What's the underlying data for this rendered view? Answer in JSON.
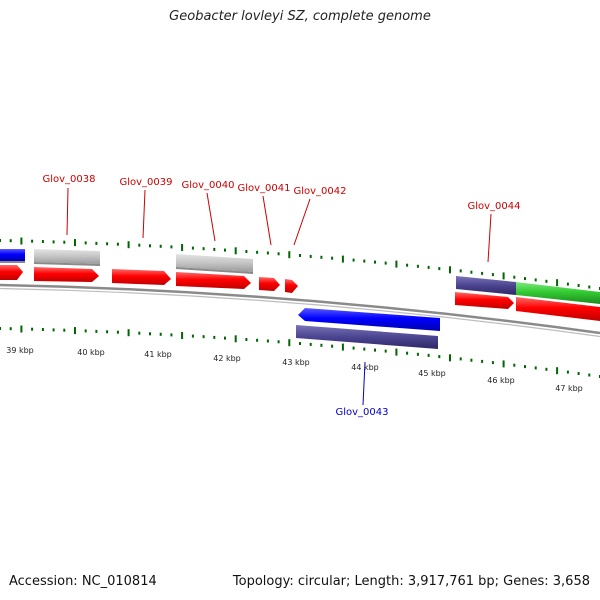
{
  "title": "Geobacter lovleyi SZ, complete genome",
  "footer": {
    "accession": "Accession: NC_010814",
    "topology": "Topology: circular; Length: 3,917,761 bp; Genes: 3,658"
  },
  "colors": {
    "cds": "#ff0000",
    "gene": "#c4c4c4",
    "blue_feature": "#0000ff",
    "purple_feature": "#4b4490",
    "green_feature": "#33cc33",
    "tick": "#006600",
    "backbone": "#808080",
    "label_forward": "#cc0000",
    "label_reverse": "#0000cc"
  },
  "scale": {
    "unit": "kbp",
    "ticks": [
      39,
      40,
      41,
      42,
      43,
      44,
      45,
      46,
      47
    ]
  },
  "labels": [
    {
      "name": "Glov_0038",
      "strand": "forward"
    },
    {
      "name": "Glov_0039",
      "strand": "forward"
    },
    {
      "name": "Glov_0040",
      "strand": "forward"
    },
    {
      "name": "Glov_0041",
      "strand": "forward"
    },
    {
      "name": "Glov_0042",
      "strand": "forward"
    },
    {
      "name": "Glov_0043",
      "strand": "reverse"
    },
    {
      "name": "Glov_0044",
      "strand": "forward"
    }
  ]
}
